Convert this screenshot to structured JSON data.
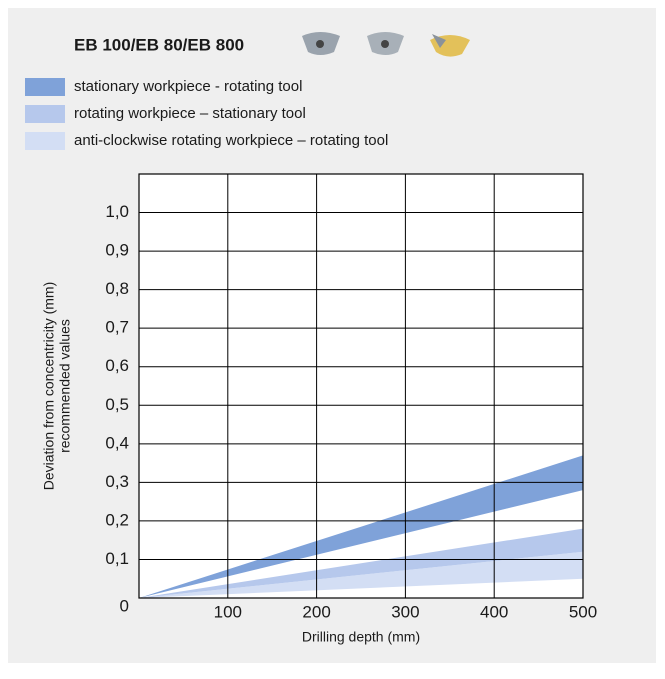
{
  "chart_data": {
    "type": "band",
    "title": "EB 100/EB 80/EB 800",
    "x_label": "Drilling depth (mm)",
    "y_label": [
      "Deviation from concentricity (mm)",
      "recommended values"
    ],
    "xlim": [
      0,
      500
    ],
    "xticks": [
      100,
      200,
      300,
      400,
      500
    ],
    "ylim": [
      0,
      1.1
    ],
    "yticks": [
      0,
      {
        "value": 0.1,
        "label": "0,1"
      },
      {
        "value": 0.2,
        "label": "0,2"
      },
      {
        "value": 0.3,
        "label": "0,3"
      },
      {
        "value": 0.4,
        "label": "0,4"
      },
      {
        "value": 0.5,
        "label": "0,5"
      },
      {
        "value": 0.6,
        "label": "0,6"
      },
      {
        "value": 0.7,
        "label": "0,7"
      },
      {
        "value": 0.8,
        "label": "0,8"
      },
      {
        "value": 0.9,
        "label": "0,9"
      },
      {
        "value": 1.0,
        "label": "1,0"
      }
    ],
    "grid": true,
    "series": [
      {
        "name": "stationary workpiece - rotating tool",
        "color": "#7fa2d9",
        "x": [
          0,
          500
        ],
        "values": [
          0,
          0.37
        ],
        "lower": [
          0,
          0.28
        ]
      },
      {
        "name": "rotating workpiece – stationary tool",
        "color": "#b6c8ec",
        "x": [
          0,
          500
        ],
        "values": [
          0,
          0.18
        ],
        "lower": [
          0,
          0.12
        ]
      },
      {
        "name": "anti-clockwise rotating workpiece – rotating tool",
        "color": "#d3def4",
        "x": [
          0,
          500
        ],
        "values": [
          0,
          0.12
        ],
        "lower": [
          0,
          0.05
        ]
      }
    ]
  }
}
